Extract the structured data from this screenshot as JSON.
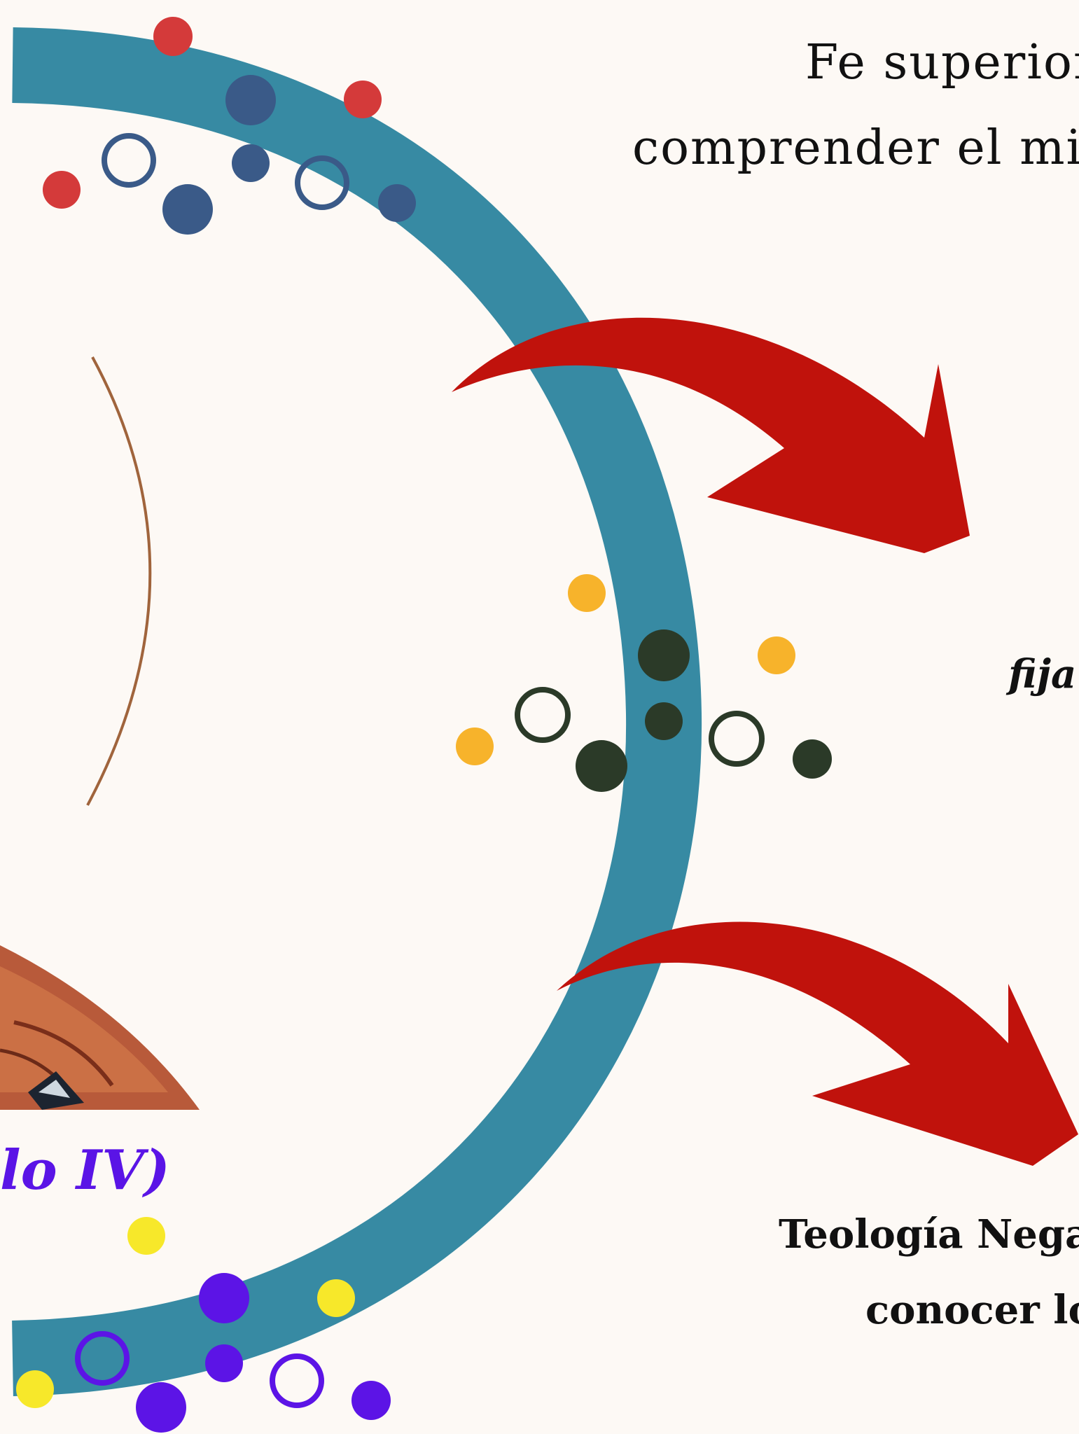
{
  "texts": {
    "top_line_1": "Fe superior",
    "top_line_2": "comprender el mi",
    "middle_italic": "fija",
    "left_purple": "lo IV)",
    "bottom_line_1": "Teología Negati",
    "bottom_line_2": "conocer lo"
  },
  "colors": {
    "background": "#fdf9f5",
    "ring": "#378aa3",
    "arrow": "#c0120c",
    "thin_arc": "#a0643c",
    "purple_text": "#5a14e6",
    "dot_red": "#d43a3a",
    "dot_navy": "#3a5a88",
    "dot_orange": "#f7b32b",
    "dot_dark_green": "#2b3a28",
    "dot_yellow": "#f7e82a",
    "dot_purple": "#5c14e6"
  },
  "icons": {
    "arrow_upper": "curved-arrow-icon",
    "arrow_lower": "curved-arrow-icon",
    "painting": "painting-fragment"
  }
}
